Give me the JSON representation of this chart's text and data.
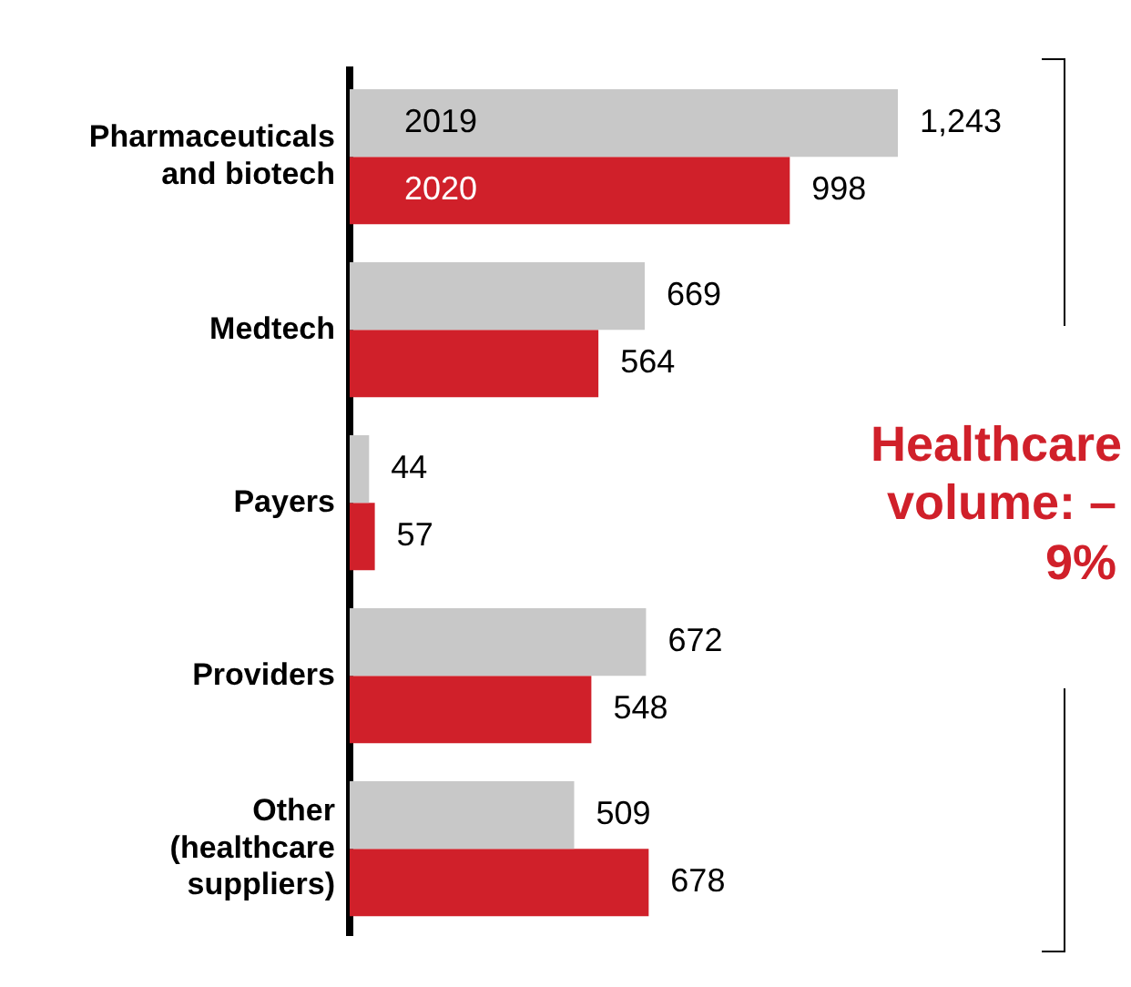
{
  "chart_data": {
    "type": "bar",
    "orientation": "horizontal",
    "categories": [
      "Pharmaceuticals and biotech",
      "Medtech",
      "Payers",
      "Providers",
      "Other (healthcare suppliers)"
    ],
    "series": [
      {
        "name": "2019",
        "color": "#c8c8c8",
        "values": [
          1243,
          669,
          44,
          672,
          509
        ],
        "value_labels": [
          "1,243",
          "669",
          "44",
          "672",
          "509"
        ]
      },
      {
        "name": "2020",
        "color": "#d0202a",
        "values": [
          998,
          564,
          57,
          548,
          678
        ],
        "value_labels": [
          "998",
          "564",
          "57",
          "548",
          "678"
        ]
      }
    ],
    "legend": false,
    "tick_labels": "y",
    "annotations": [
      "Healthcare volume: –9%"
    ]
  }
}
